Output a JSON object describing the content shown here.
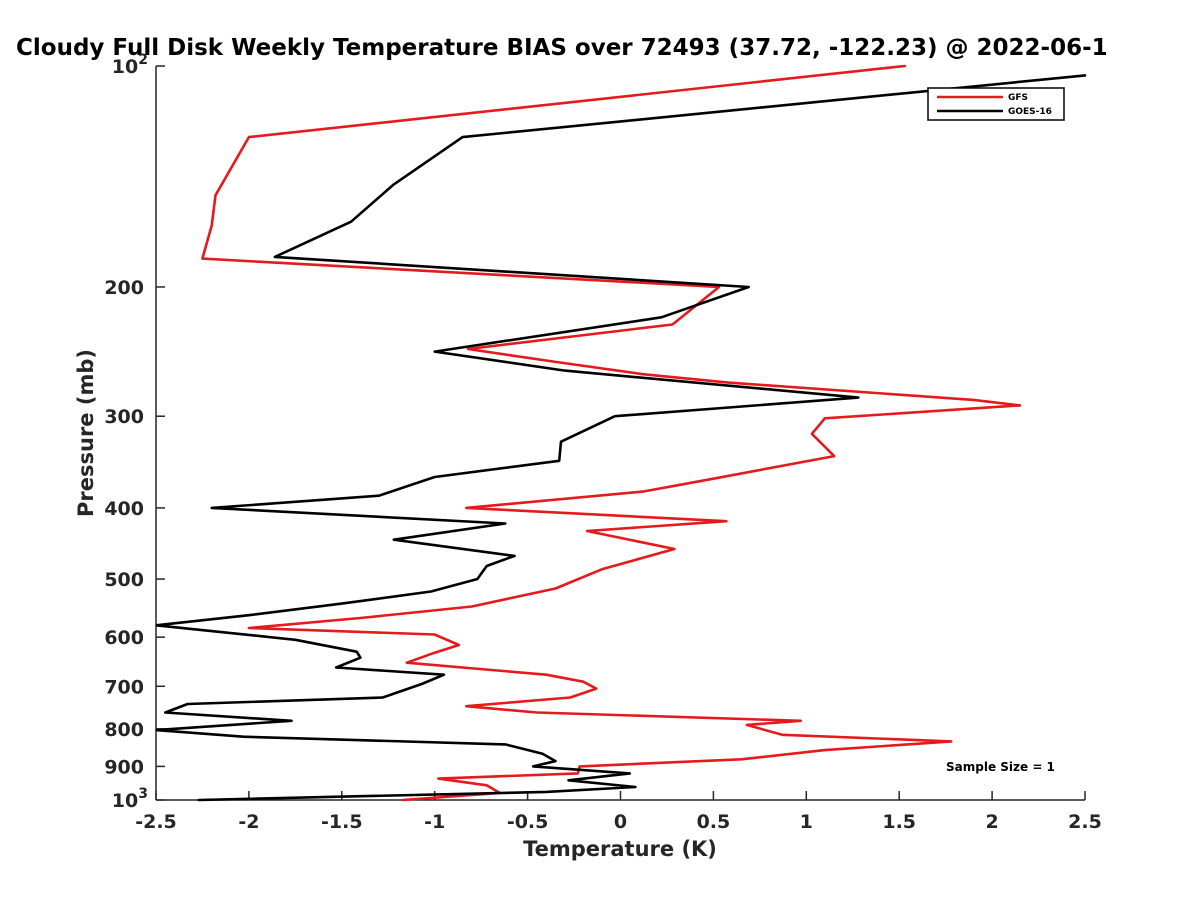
{
  "chart_data": {
    "type": "line",
    "title": "Cloudy Full Disk Weekly Temperature BIAS over 72493 (37.72, -122.23) @ 2022-06-1",
    "xlabel": "Temperature (K)",
    "ylabel": "Pressure (mb)",
    "xlim": [
      -2.5,
      2.5
    ],
    "ylim": [
      100,
      1000
    ],
    "y_scale": "log",
    "y_reversed": true,
    "grid": false,
    "legend_position": "top-right",
    "x_ticks": [
      {
        "value": -2.5,
        "label": "-2.5"
      },
      {
        "value": -2,
        "label": "-2"
      },
      {
        "value": -1.5,
        "label": "-1.5"
      },
      {
        "value": -1,
        "label": "-1"
      },
      {
        "value": -0.5,
        "label": "-0.5"
      },
      {
        "value": 0,
        "label": "0"
      },
      {
        "value": 0.5,
        "label": "0.5"
      },
      {
        "value": 1,
        "label": "1"
      },
      {
        "value": 1.5,
        "label": "1.5"
      },
      {
        "value": 2,
        "label": "2"
      },
      {
        "value": 2.5,
        "label": "2.5"
      }
    ],
    "y_ticks": [
      {
        "value": 100,
        "label": "10",
        "sup": "2"
      },
      {
        "value": 200,
        "label": "200"
      },
      {
        "value": 300,
        "label": "300"
      },
      {
        "value": 400,
        "label": "400"
      },
      {
        "value": 500,
        "label": "500"
      },
      {
        "value": 600,
        "label": "600"
      },
      {
        "value": 700,
        "label": "700"
      },
      {
        "value": 800,
        "label": "800"
      },
      {
        "value": 900,
        "label": "900"
      },
      {
        "value": 1000,
        "label": "10",
        "sup": "3"
      }
    ],
    "series": [
      {
        "name": "GFS",
        "color": "#e41a1c",
        "points": [
          [
            1.53,
            100
          ],
          [
            -2.0,
            125
          ],
          [
            -2.18,
            150
          ],
          [
            -2.2,
            165
          ],
          [
            -2.25,
            183
          ],
          [
            0.53,
            200
          ],
          [
            0.28,
            225
          ],
          [
            -0.82,
            243
          ],
          [
            -0.35,
            253
          ],
          [
            0.12,
            263
          ],
          [
            0.58,
            270
          ],
          [
            1.9,
            285
          ],
          [
            2.15,
            290
          ],
          [
            1.1,
            302
          ],
          [
            1.03,
            317
          ],
          [
            1.15,
            340
          ],
          [
            0.5,
            365
          ],
          [
            0.12,
            380
          ],
          [
            -0.83,
            400
          ],
          [
            0.57,
            417
          ],
          [
            -0.18,
            430
          ],
          [
            0.29,
            455
          ],
          [
            -0.1,
            485
          ],
          [
            -0.35,
            515
          ],
          [
            -0.8,
            545
          ],
          [
            -1.4,
            565
          ],
          [
            -2.0,
            583
          ],
          [
            -1.0,
            595
          ],
          [
            -0.87,
            615
          ],
          [
            -1.0,
            630
          ],
          [
            -1.15,
            650
          ],
          [
            -0.4,
            675
          ],
          [
            -0.2,
            690
          ],
          [
            -0.13,
            705
          ],
          [
            -0.27,
            725
          ],
          [
            -0.83,
            745
          ],
          [
            -0.45,
            760
          ],
          [
            0.97,
            780
          ],
          [
            0.68,
            790
          ],
          [
            0.87,
            815
          ],
          [
            1.78,
            832
          ],
          [
            1.1,
            855
          ],
          [
            0.65,
            880
          ],
          [
            -0.22,
            900
          ],
          [
            -0.23,
            920
          ],
          [
            -0.98,
            935
          ],
          [
            -0.72,
            955
          ],
          [
            -0.65,
            978
          ],
          [
            -1.17,
            1000
          ]
        ]
      },
      {
        "name": "GOES-16",
        "color": "#000000",
        "points": [
          [
            2.5,
            103
          ],
          [
            -0.85,
            125
          ],
          [
            -1.22,
            145
          ],
          [
            -1.45,
            163
          ],
          [
            -1.86,
            182
          ],
          [
            0.69,
            200
          ],
          [
            0.22,
            220
          ],
          [
            -1.0,
            245
          ],
          [
            -0.3,
            260
          ],
          [
            1.28,
            283
          ],
          [
            -0.03,
            300
          ],
          [
            -0.32,
            325
          ],
          [
            -0.33,
            345
          ],
          [
            -1.0,
            363
          ],
          [
            -1.3,
            385
          ],
          [
            -2.2,
            400
          ],
          [
            -0.62,
            420
          ],
          [
            -1.22,
            442
          ],
          [
            -0.57,
            465
          ],
          [
            -0.72,
            480
          ],
          [
            -0.77,
            500
          ],
          [
            -1.02,
            520
          ],
          [
            -1.5,
            540
          ],
          [
            -2.0,
            560
          ],
          [
            -2.5,
            578
          ],
          [
            -1.75,
            605
          ],
          [
            -1.42,
            628
          ],
          [
            -1.4,
            640
          ],
          [
            -1.53,
            660
          ],
          [
            -0.95,
            675
          ],
          [
            -1.07,
            695
          ],
          [
            -1.28,
            725
          ],
          [
            -2.33,
            740
          ],
          [
            -2.45,
            760
          ],
          [
            -1.77,
            780
          ],
          [
            -2.5,
            803
          ],
          [
            -2.03,
            820
          ],
          [
            -0.62,
            840
          ],
          [
            -0.42,
            865
          ],
          [
            -0.35,
            885
          ],
          [
            -0.47,
            900
          ],
          [
            0.05,
            920
          ],
          [
            -0.28,
            940
          ],
          [
            0.08,
            960
          ],
          [
            -0.4,
            975
          ],
          [
            -2.27,
            1000
          ]
        ]
      }
    ],
    "annotations": [
      {
        "text": "Sample Size = 1"
      }
    ]
  }
}
